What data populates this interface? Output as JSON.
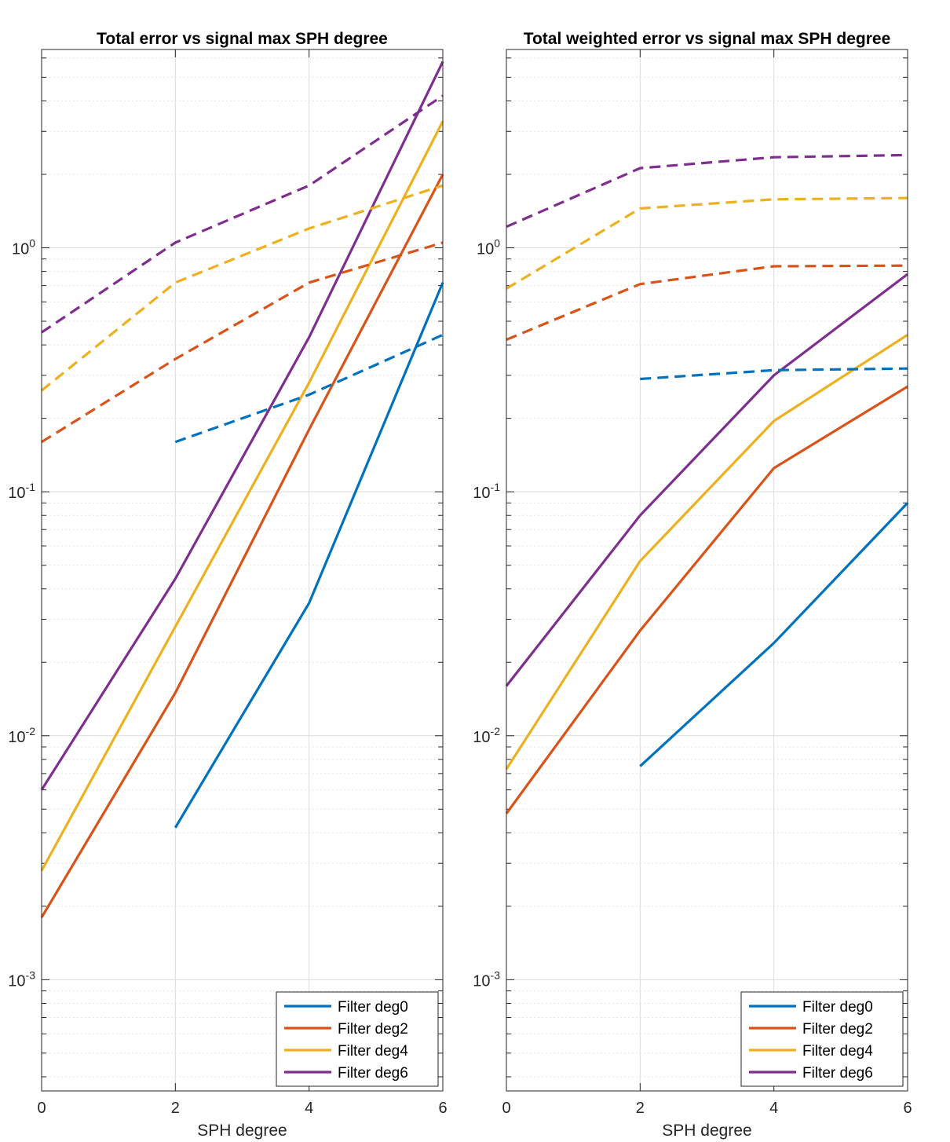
{
  "chart_data": [
    {
      "type": "line",
      "title": "Total error vs signal max SPH degree",
      "xlabel": "SPH degree",
      "ylabel": "",
      "yscale": "log",
      "xlim": [
        0,
        6
      ],
      "ylim": [
        0.00035,
        6.5
      ],
      "xticks": [
        0,
        2,
        4,
        6
      ],
      "yticks": [
        {
          "value": 0.001,
          "base": "10",
          "exp": "-3"
        },
        {
          "value": 0.01,
          "base": "10",
          "exp": "-2"
        },
        {
          "value": 0.1,
          "base": "10",
          "exp": "-1"
        },
        {
          "value": 1,
          "base": "10",
          "exp": "0"
        }
      ],
      "grid": true,
      "legend_position": "bottom-right",
      "series": [
        {
          "name": "Filter deg0",
          "color": "#0072BD",
          "style": "solid",
          "x": [
            2,
            4,
            6
          ],
          "values": [
            0.0042,
            0.035,
            0.72
          ]
        },
        {
          "name": "Filter deg2",
          "color": "#D95319",
          "style": "solid",
          "x": [
            0,
            2,
            4,
            6
          ],
          "values": [
            0.0018,
            0.015,
            0.18,
            2.0
          ]
        },
        {
          "name": "Filter deg4",
          "color": "#EDB120",
          "style": "solid",
          "x": [
            0,
            2,
            4,
            6
          ],
          "values": [
            0.0028,
            0.028,
            0.28,
            3.3
          ]
        },
        {
          "name": "Filter deg6",
          "color": "#7E2F8E",
          "style": "solid",
          "x": [
            0,
            2,
            4,
            6
          ],
          "values": [
            0.006,
            0.044,
            0.43,
            5.8
          ]
        },
        {
          "name": "",
          "color": "#0072BD",
          "style": "dashed",
          "x": [
            2,
            4,
            6
          ],
          "values": [
            0.16,
            0.25,
            0.44
          ]
        },
        {
          "name": "",
          "color": "#D95319",
          "style": "dashed",
          "x": [
            0,
            2,
            4,
            6
          ],
          "values": [
            0.16,
            0.35,
            0.72,
            1.05
          ]
        },
        {
          "name": "",
          "color": "#EDB120",
          "style": "dashed",
          "x": [
            0,
            2,
            4,
            6
          ],
          "values": [
            0.26,
            0.72,
            1.2,
            1.8
          ]
        },
        {
          "name": "",
          "color": "#7E2F8E",
          "style": "dashed",
          "x": [
            0,
            2,
            4,
            6
          ],
          "values": [
            0.45,
            1.05,
            1.8,
            4.2
          ]
        }
      ]
    },
    {
      "type": "line",
      "title": "Total weighted error vs signal max SPH degree",
      "xlabel": "SPH degree",
      "ylabel": "",
      "yscale": "log",
      "xlim": [
        0,
        6
      ],
      "ylim": [
        0.00035,
        6.5
      ],
      "xticks": [
        0,
        2,
        4,
        6
      ],
      "yticks": [
        {
          "value": 0.001,
          "base": "10",
          "exp": "-3"
        },
        {
          "value": 0.01,
          "base": "10",
          "exp": "-2"
        },
        {
          "value": 0.1,
          "base": "10",
          "exp": "-1"
        },
        {
          "value": 1,
          "base": "10",
          "exp": "0"
        }
      ],
      "grid": true,
      "legend_position": "bottom-right",
      "series": [
        {
          "name": "Filter deg0",
          "color": "#0072BD",
          "style": "solid",
          "x": [
            2,
            4,
            6
          ],
          "values": [
            0.0075,
            0.024,
            0.09
          ]
        },
        {
          "name": "Filter deg2",
          "color": "#D95319",
          "style": "solid",
          "x": [
            0,
            2,
            4,
            6
          ],
          "values": [
            0.0048,
            0.027,
            0.125,
            0.27
          ]
        },
        {
          "name": "Filter deg4",
          "color": "#EDB120",
          "style": "solid",
          "x": [
            0,
            2,
            4,
            6
          ],
          "values": [
            0.0073,
            0.052,
            0.195,
            0.44
          ]
        },
        {
          "name": "Filter deg6",
          "color": "#7E2F8E",
          "style": "solid",
          "x": [
            0,
            2,
            4,
            6
          ],
          "values": [
            0.016,
            0.08,
            0.3,
            0.78
          ]
        },
        {
          "name": "",
          "color": "#0072BD",
          "style": "dashed",
          "x": [
            2,
            4,
            6
          ],
          "values": [
            0.29,
            0.315,
            0.32
          ]
        },
        {
          "name": "",
          "color": "#D95319",
          "style": "dashed",
          "x": [
            0,
            2,
            4,
            6
          ],
          "values": [
            0.42,
            0.71,
            0.84,
            0.845
          ]
        },
        {
          "name": "",
          "color": "#EDB120",
          "style": "dashed",
          "x": [
            0,
            2,
            4,
            6
          ],
          "values": [
            0.68,
            1.45,
            1.58,
            1.6
          ]
        },
        {
          "name": "",
          "color": "#7E2F8E",
          "style": "dashed",
          "x": [
            0,
            2,
            4,
            6
          ],
          "values": [
            1.22,
            2.12,
            2.35,
            2.4
          ]
        }
      ]
    }
  ]
}
